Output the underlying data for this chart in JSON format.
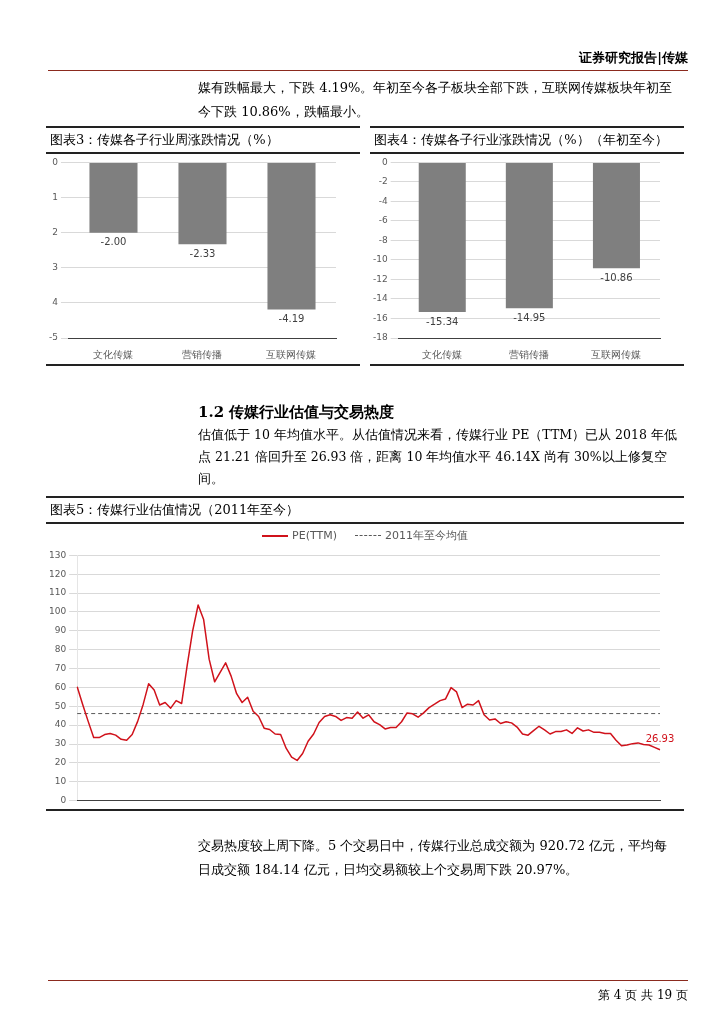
{
  "chart_data": [
    {
      "type": "bar",
      "title": "图表3：传媒各子行业周涨跌情况（%）",
      "annotations": [
        "证券研究报告|传媒",
        "媒有跌幅最大，下跌 4.19%。年初至今各子板块全部下跌，互联网传媒板块年初至今下跌 10.86%，跌幅最小。"
      ],
      "categories": [
        "文化传媒",
        "营销传播",
        "互联网传媒"
      ],
      "values": [
        -2.0,
        -2.33,
        -4.19
      ],
      "value_labels": [
        "-2.00",
        "-2.33",
        "-4.19"
      ],
      "color": "#7f7f7f",
      "ylim": [
        -5,
        0
      ],
      "yticks": [
        -5,
        {
          "value": -4,
          "label": "4"
        },
        {
          "value": -3,
          "label": "3"
        },
        {
          "value": -2,
          "label": "2"
        },
        {
          "value": -1,
          "label": "1"
        },
        0
      ],
      "grid": "y"
    },
    {
      "type": "bar",
      "title": "图表4：传媒各子行业涨跌情况（%）（年初至今）",
      "categories": [
        "文化传媒",
        "营销传播",
        "互联网传媒"
      ],
      "values": [
        -15.34,
        -14.95,
        -10.86
      ],
      "value_labels": [
        "-15.34",
        "-14.95",
        "-10.86"
      ],
      "color": "#7f7f7f",
      "ylim": [
        -18,
        0
      ],
      "yticks": [
        -18,
        -16,
        -14,
        -12,
        -10,
        -8,
        -6,
        -4,
        -2,
        0
      ],
      "grid": "y"
    },
    {
      "type": "line",
      "title": "图表5：传媒行业估值情况（2011年至今）",
      "annotations": [
        "1.2 传媒行业估值与交易热度",
        "估值低于 10 年均值水平。从估值情况来看，传媒行业 PE（TTM）已从 2018 年低点 21.21 倍回升至 26.93 倍，距离 10 年均值水平 46.14X 尚有 30%以上修复空间。",
        "交易热度较上周下降。5 个交易日中，传媒行业总成交额为 920.72 亿元，平均每日成交额 184.14 亿元，日均交易额较上个交易周下跌 20.97%。",
        "第 4 页 共 19 页"
      ],
      "categories": [
        null,
        null,
        null,
        null,
        null,
        null,
        null,
        null,
        null,
        null,
        null,
        null,
        null,
        null,
        null,
        null,
        null,
        null,
        null,
        null,
        null,
        null,
        null,
        null,
        null,
        null,
        null,
        null,
        null,
        null,
        null,
        null,
        null,
        null,
        null,
        null,
        null,
        null,
        null,
        null,
        null,
        null,
        null,
        null,
        null,
        null,
        null,
        null,
        null,
        null,
        null,
        null,
        null,
        null,
        null,
        null,
        null,
        null,
        null,
        null,
        null,
        null,
        null,
        null,
        null,
        null,
        null,
        null,
        null,
        null,
        null,
        null,
        null,
        null,
        null,
        null,
        null,
        null,
        null,
        null,
        null,
        null,
        null,
        null,
        null,
        null,
        null,
        null,
        null,
        null,
        null,
        null,
        null,
        null,
        null,
        null,
        null,
        null,
        null,
        null,
        null,
        null,
        null,
        null,
        null,
        null,
        null
      ],
      "series": [
        {
          "name": "PE(TTM)",
          "color": "#d0121b",
          "values": [
            60.4,
            51,
            42,
            33.4,
            33.4,
            35,
            35.6,
            34.7,
            32.5,
            32,
            35,
            42,
            51,
            62,
            58.6,
            50.7,
            52,
            49,
            53,
            51.5,
            71.6,
            90,
            103.7,
            96,
            75,
            63,
            68,
            73,
            66,
            56.7,
            52,
            54.8,
            47.4,
            44.6,
            38.4,
            37.7,
            35.3,
            35,
            27.8,
            23,
            21.3,
            25,
            31.5,
            35.3,
            41.4,
            44.6,
            45.5,
            44.6,
            42.5,
            44,
            43.7,
            47,
            43.7,
            45.5,
            41.8,
            40.3,
            38,
            38.8,
            38.8,
            41.8,
            46.5,
            46,
            44.2,
            46.5,
            49.3,
            51.1,
            53,
            53.9,
            59.9,
            57.6,
            49.3,
            51.1,
            50.7,
            53,
            45.5,
            42.7,
            43.3,
            40.9,
            41.8,
            41.2,
            39,
            35.3,
            34.7,
            37.1,
            39.4,
            37.5,
            35.3,
            36.6,
            36.6,
            37.5,
            35.6,
            38.6,
            36.9,
            37.5,
            36.2,
            36.2,
            35.6,
            35.6,
            32,
            29.1,
            29.5,
            30.2,
            30.6,
            29.7,
            29.5,
            28.2,
            26.93
          ],
          "value_labels": [
            null,
            null,
            null,
            null,
            null,
            null,
            null,
            null,
            null,
            null,
            null,
            null,
            null,
            null,
            null,
            null,
            null,
            null,
            null,
            null,
            null,
            null,
            null,
            null,
            null,
            null,
            null,
            null,
            null,
            null,
            null,
            null,
            null,
            null,
            null,
            null,
            null,
            null,
            null,
            null,
            null,
            null,
            null,
            null,
            null,
            null,
            null,
            null,
            null,
            null,
            null,
            null,
            null,
            null,
            null,
            null,
            null,
            null,
            null,
            null,
            null,
            null,
            null,
            null,
            null,
            null,
            null,
            null,
            null,
            null,
            null,
            null,
            null,
            null,
            null,
            null,
            null,
            null,
            null,
            null,
            null,
            null,
            null,
            null,
            null,
            null,
            null,
            null,
            null,
            null,
            null,
            null,
            null,
            null,
            null,
            null,
            null,
            null,
            null,
            null,
            null,
            null,
            null,
            null,
            null,
            null,
            "26.93"
          ]
        }
      ],
      "ref_lines": [
        {
          "axis": "y",
          "value": 46.14,
          "label": "2011年至今均值",
          "color": "#595959",
          "line_style": "dashed"
        }
      ],
      "ylim": [
        0,
        130
      ],
      "yticks": [
        0,
        10,
        20,
        30,
        40,
        50,
        60,
        70,
        80,
        90,
        100,
        110,
        120,
        130
      ],
      "grid": "y",
      "legend": "top",
      "tick_labels": "y",
      "marker": "none",
      "line_style": "solid"
    }
  ]
}
